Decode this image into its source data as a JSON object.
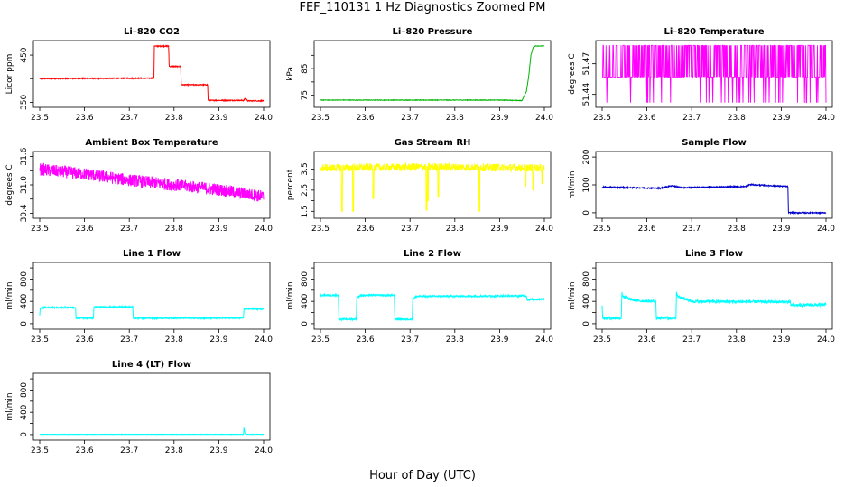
{
  "title": "FEF_110131  1 Hz Diagnostics Zoomed PM",
  "xlabel": "Hour of Day (UTC)",
  "chart_data": [
    {
      "type": "line",
      "title": "Li–820 CO2",
      "ylabel": "Licor ppm",
      "xlim": [
        23.5,
        24.0
      ],
      "ylim": [
        345,
        475
      ],
      "xticks": [
        "23.5",
        "23.6",
        "23.7",
        "23.8",
        "23.9",
        "24.0"
      ],
      "yticks": [
        350,
        400,
        450
      ],
      "ytick_labels": [
        "350",
        "",
        "450"
      ],
      "series": [
        {
          "color": "#ff0000",
          "noise": 1,
          "x": [
            23.5,
            23.755,
            23.756,
            23.788,
            23.789,
            23.815,
            23.816,
            23.875,
            23.876,
            23.955,
            23.96,
            23.965,
            24.0
          ],
          "y": [
            400,
            401,
            469,
            469,
            426,
            426,
            387,
            387,
            354,
            354,
            358,
            353,
            353
          ]
        }
      ]
    },
    {
      "type": "line",
      "title": "Li–820 Pressure",
      "ylabel": "kPa",
      "xlim": [
        23.5,
        24.0
      ],
      "ylim": [
        71.5,
        94.5
      ],
      "xticks": [
        "23.5",
        "23.6",
        "23.7",
        "23.8",
        "23.9",
        "24.0"
      ],
      "yticks": [
        75,
        80,
        85,
        90
      ],
      "ytick_labels": [
        "75",
        "",
        "85",
        ""
      ],
      "series": [
        {
          "color": "#00b400",
          "noise": 0.1,
          "x": [
            23.5,
            23.91,
            23.95,
            23.96,
            23.965,
            23.97,
            23.975,
            23.98,
            24.0
          ],
          "y": [
            73.2,
            73.2,
            73.0,
            76.5,
            82.0,
            90.0,
            93.0,
            93.5,
            93.5
          ]
        }
      ]
    },
    {
      "type": "line",
      "title": "Li–820 Temperature",
      "ylabel": "degrees C",
      "xlim": [
        23.5,
        24.0
      ],
      "ylim": [
        51.43,
        51.49
      ],
      "xticks": [
        "23.5",
        "23.6",
        "23.7",
        "23.8",
        "23.9",
        "24.0"
      ],
      "yticks": [
        51.44,
        51.47
      ],
      "ytick_labels": [
        "51.44",
        "51.47"
      ],
      "series": [
        {
          "color": "#ff00ff",
          "style": "quantized",
          "x": [
            23.5,
            24.0
          ],
          "levels": [
            51.432,
            51.457,
            51.488
          ]
        }
      ]
    },
    {
      "type": "line",
      "title": "Ambient Box Temperature",
      "ylabel": "degrees C",
      "xlim": [
        23.5,
        24.0
      ],
      "ylim": [
        30.35,
        31.65
      ],
      "xticks": [
        "23.5",
        "23.6",
        "23.7",
        "23.8",
        "23.9",
        "24.0"
      ],
      "yticks": [
        30.4,
        30.7,
        31.0,
        31.3,
        31.6
      ],
      "ytick_labels": [
        "30.4",
        "",
        "31.0",
        "",
        "31.6"
      ],
      "series": [
        {
          "color": "#ff00ff",
          "noise": 0.13,
          "x": [
            23.5,
            23.6,
            23.7,
            23.8,
            23.9,
            24.0
          ],
          "y": [
            31.33,
            31.23,
            31.1,
            31.0,
            30.9,
            30.75
          ]
        }
      ]
    },
    {
      "type": "line",
      "title": "Gas Stream RH",
      "ylabel": "percent",
      "xlim": [
        23.5,
        24.0
      ],
      "ylim": [
        1.3,
        4.2
      ],
      "xticks": [
        "23.5",
        "23.6",
        "23.7",
        "23.8",
        "23.9",
        "24.0"
      ],
      "yticks": [
        1.5,
        2.0,
        2.5,
        3.0,
        3.5
      ],
      "ytick_labels": [
        "1.5",
        "",
        "2.5",
        "",
        "3.5"
      ],
      "series": [
        {
          "color": "#ffff00",
          "noise": 0.18,
          "x": [
            23.5,
            23.75,
            24.0
          ],
          "y": [
            3.55,
            3.6,
            3.55
          ],
          "dips": [
            [
              23.548,
              1.5
            ],
            [
              23.573,
              1.5
            ],
            [
              23.618,
              2.1
            ],
            [
              23.737,
              1.55
            ],
            [
              23.74,
              2.0
            ],
            [
              23.763,
              2.2
            ],
            [
              23.855,
              1.5
            ],
            [
              23.958,
              2.7
            ],
            [
              23.975,
              2.5
            ],
            [
              23.995,
              2.8
            ]
          ]
        }
      ]
    },
    {
      "type": "line",
      "title": "Sample Flow",
      "ylabel": "ml/min",
      "xlim": [
        23.5,
        24.0
      ],
      "ylim": [
        -10,
        210
      ],
      "xticks": [
        "23.5",
        "23.6",
        "23.7",
        "23.8",
        "23.9",
        "24.0"
      ],
      "yticks": [
        0,
        100,
        200
      ],
      "ytick_labels": [
        "0",
        "100",
        "200"
      ],
      "series": [
        {
          "color": "#0000cc",
          "noise": 2,
          "x": [
            23.5,
            23.63,
            23.655,
            23.68,
            23.82,
            23.83,
            23.915,
            23.916,
            24.0
          ],
          "y": [
            92,
            88,
            97,
            90,
            94,
            101,
            94,
            0,
            0
          ]
        }
      ]
    },
    {
      "type": "line",
      "title": "Line 1 Flow",
      "ylabel": "ml/min",
      "xlim": [
        23.5,
        24.0
      ],
      "ylim": [
        -50,
        1050
      ],
      "xticks": [
        "23.5",
        "23.6",
        "23.7",
        "23.8",
        "23.9",
        "24.0"
      ],
      "yticks": [
        0,
        200,
        400,
        600,
        800,
        1000
      ],
      "ytick_labels": [
        "0",
        "",
        "400",
        "",
        "800",
        ""
      ],
      "series": [
        {
          "color": "#00ffff",
          "noise": 12,
          "x": [
            23.5,
            23.501,
            23.505,
            23.58,
            23.581,
            23.62,
            23.621,
            23.708,
            23.709,
            23.955,
            23.956,
            24.0
          ],
          "y": [
            150,
            280,
            290,
            290,
            100,
            100,
            300,
            300,
            100,
            100,
            265,
            265
          ]
        }
      ]
    },
    {
      "type": "line",
      "title": "Line 2 Flow",
      "ylabel": "ml/min",
      "xlim": [
        23.5,
        24.0
      ],
      "ylim": [
        -50,
        1050
      ],
      "xticks": [
        "23.5",
        "23.6",
        "23.7",
        "23.8",
        "23.9",
        "24.0"
      ],
      "yticks": [
        0,
        200,
        400,
        600,
        800,
        1000
      ],
      "ytick_labels": [
        "0",
        "",
        "400",
        "",
        "800",
        ""
      ],
      "series": [
        {
          "color": "#00ffff",
          "noise": 15,
          "x": [
            23.5,
            23.54,
            23.541,
            23.58,
            23.581,
            23.59,
            23.665,
            23.666,
            23.705,
            23.706,
            23.715,
            23.96,
            23.961,
            24.0
          ],
          "y": [
            510,
            510,
            80,
            80,
            470,
            510,
            510,
            80,
            80,
            450,
            490,
            500,
            430,
            440
          ]
        }
      ]
    },
    {
      "type": "line",
      "title": "Line 3 Flow",
      "ylabel": "ml/min",
      "xlim": [
        23.5,
        24.0
      ],
      "ylim": [
        -50,
        1050
      ],
      "xticks": [
        "23.5",
        "23.6",
        "23.7",
        "23.8",
        "23.9",
        "24.0"
      ],
      "yticks": [
        0,
        200,
        400,
        600,
        800,
        1000
      ],
      "ytick_labels": [
        "0",
        "",
        "400",
        "",
        "800",
        ""
      ],
      "series": [
        {
          "color": "#00ffff",
          "noise": 25,
          "x": [
            23.5,
            23.501,
            23.502,
            23.543,
            23.544,
            23.546,
            23.56,
            23.58,
            23.62,
            23.621,
            23.665,
            23.666,
            23.668,
            23.69,
            23.7,
            23.92,
            23.921,
            24.0
          ],
          "y": [
            350,
            100,
            100,
            100,
            560,
            500,
            440,
            410,
            400,
            100,
            100,
            570,
            500,
            430,
            400,
            390,
            330,
            340
          ]
        }
      ]
    },
    {
      "type": "line",
      "title": "Line 4 (LT) Flow",
      "ylabel": "ml/min",
      "xlim": [
        23.5,
        24.0
      ],
      "ylim": [
        -50,
        1050
      ],
      "xticks": [
        "23.5",
        "23.6",
        "23.7",
        "23.8",
        "23.9",
        "24.0"
      ],
      "yticks": [
        0,
        200,
        400,
        600,
        800,
        1000
      ],
      "ytick_labels": [
        "0",
        "",
        "400",
        "",
        "800",
        ""
      ],
      "series": [
        {
          "color": "#00ffff",
          "noise": 3,
          "x": [
            23.5,
            23.955,
            23.956,
            23.958,
            23.96,
            24.0
          ],
          "y": [
            5,
            5,
            130,
            30,
            5,
            5
          ]
        }
      ]
    }
  ]
}
